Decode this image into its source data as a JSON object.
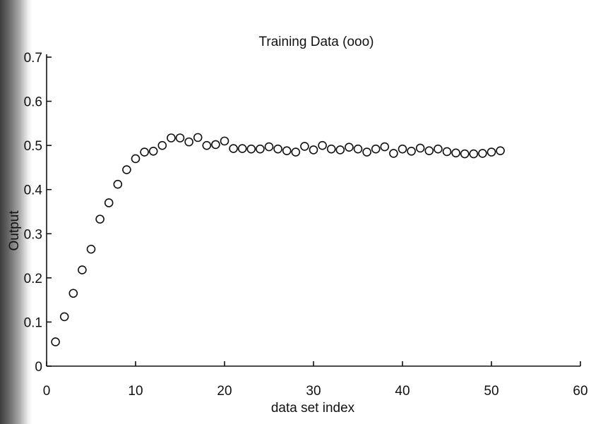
{
  "chart_data": {
    "type": "scatter",
    "title": "Training Data (ooo)",
    "xlabel": "data set index",
    "ylabel": "Output",
    "xlim": [
      0,
      60
    ],
    "ylim": [
      0,
      0.7
    ],
    "xticks": [
      0,
      10,
      20,
      30,
      40,
      50,
      60
    ],
    "yticks": [
      0,
      0.1,
      0.2,
      0.3,
      0.4,
      0.5,
      0.6,
      0.7
    ],
    "xtick_labels": [
      "0",
      "10",
      "20",
      "30",
      "40",
      "50",
      "60"
    ],
    "ytick_labels": [
      "0",
      "0.1",
      "0.2",
      "0.3",
      "0.4",
      "0.5",
      "0.6",
      "0.7"
    ],
    "marker": "open-circle",
    "grid": false,
    "series": [
      {
        "x": [
          1,
          2,
          3,
          4,
          5,
          6,
          7,
          8,
          9,
          10,
          11,
          12,
          13,
          14,
          15,
          16,
          17,
          18,
          19,
          20,
          21,
          22,
          23,
          24,
          25,
          26,
          27,
          28,
          29,
          30,
          31,
          32,
          33,
          34,
          35,
          36,
          37,
          38,
          39,
          40,
          41,
          42,
          43,
          44,
          45,
          46,
          47,
          48,
          49,
          50,
          51
        ],
        "y": [
          0.055,
          0.112,
          0.165,
          0.218,
          0.265,
          0.333,
          0.37,
          0.412,
          0.445,
          0.47,
          0.485,
          0.487,
          0.5,
          0.517,
          0.517,
          0.508,
          0.518,
          0.5,
          0.502,
          0.51,
          0.493,
          0.493,
          0.492,
          0.492,
          0.497,
          0.492,
          0.488,
          0.485,
          0.498,
          0.49,
          0.5,
          0.492,
          0.49,
          0.496,
          0.492,
          0.485,
          0.492,
          0.497,
          0.482,
          0.492,
          0.487,
          0.494,
          0.488,
          0.492,
          0.486,
          0.483,
          0.481,
          0.481,
          0.482,
          0.485,
          0.488
        ]
      }
    ]
  }
}
